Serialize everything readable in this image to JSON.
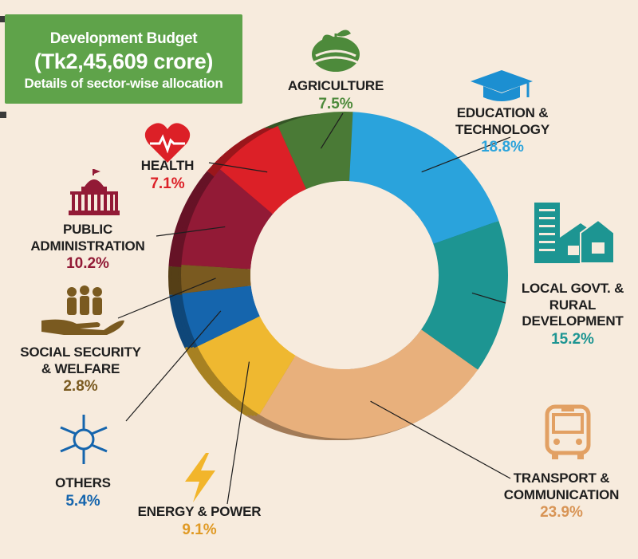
{
  "header": {
    "line1": "Development Budget",
    "line2": "(Tk2,45,609 crore)",
    "line3": "Details of sector-wise allocation"
  },
  "chart_data": {
    "type": "pie",
    "title": "Development Budget (Tk2,45,609 crore)",
    "subtitle": "Details of sector-wise allocation",
    "slices": [
      {
        "label": "AGRICULTURE",
        "name_lines": [
          "AGRICULTURE"
        ],
        "value": 7.5,
        "value_label": "7.5%",
        "color": "#4a7a36",
        "icon": "sprout-field-icon"
      },
      {
        "label": "EDUCATION & TECHNOLOGY",
        "name_lines": [
          "EDUCATION &",
          "TECHNOLOGY"
        ],
        "value": 18.8,
        "value_label": "18.8%",
        "color": "#2aa3dc",
        "icon": "graduation-cap-icon"
      },
      {
        "label": "LOCAL GOVT. & RURAL DEVELOPMENT",
        "name_lines": [
          "LOCAL GOVT. &",
          "RURAL",
          "DEVELOPMENT"
        ],
        "value": 15.2,
        "value_label": "15.2%",
        "color": "#1d9592",
        "icon": "buildings-icon"
      },
      {
        "label": "TRANSPORT & COMMUNICATION",
        "name_lines": [
          "TRANSPORT &",
          "COMMUNICATION"
        ],
        "value": 23.9,
        "value_label": "23.9%",
        "color": "#e8b07c",
        "icon": "bus-icon"
      },
      {
        "label": "ENERGY & POWER",
        "name_lines": [
          "ENERGY & POWER"
        ],
        "value": 9.1,
        "value_label": "9.1%",
        "color": "#efb830",
        "icon": "lightning-icon"
      },
      {
        "label": "OTHERS",
        "name_lines": [
          "OTHERS"
        ],
        "value": 5.4,
        "value_label": "5.4%",
        "color": "#1565ad",
        "icon": "joined-hands-icon"
      },
      {
        "label": "SOCIAL SECURITY & WELFARE",
        "name_lines": [
          "SOCIAL SECURITY",
          "& WELFARE"
        ],
        "value": 2.8,
        "value_label": "2.8%",
        "color": "#7a5a20",
        "icon": "hand-people-icon"
      },
      {
        "label": "PUBLIC ADMINISTRATION",
        "name_lines": [
          "PUBLIC",
          "ADMINISTRATION"
        ],
        "value": 10.2,
        "value_label": "10.2%",
        "color": "#921a36",
        "icon": "capitol-icon"
      },
      {
        "label": "HEALTH",
        "name_lines": [
          "HEALTH"
        ],
        "value": 7.1,
        "value_label": "7.1%",
        "color": "#dc2027",
        "icon": "heart-pulse-icon"
      }
    ],
    "value_colors": {
      "AGRICULTURE": "#4d8a3b",
      "EDUCATION & TECHNOLOGY": "#2aa3dc",
      "LOCAL GOVT. & RURAL DEVELOPMENT": "#1d9592",
      "TRANSPORT & COMMUNICATION": "#d89455",
      "ENERGY & POWER": "#e09a25",
      "OTHERS": "#1565ad",
      "SOCIAL SECURITY & WELFARE": "#7a5a20",
      "PUBLIC ADMINISTRATION": "#921a36",
      "HEALTH": "#dc2027"
    },
    "legend": "none",
    "donut": true
  }
}
